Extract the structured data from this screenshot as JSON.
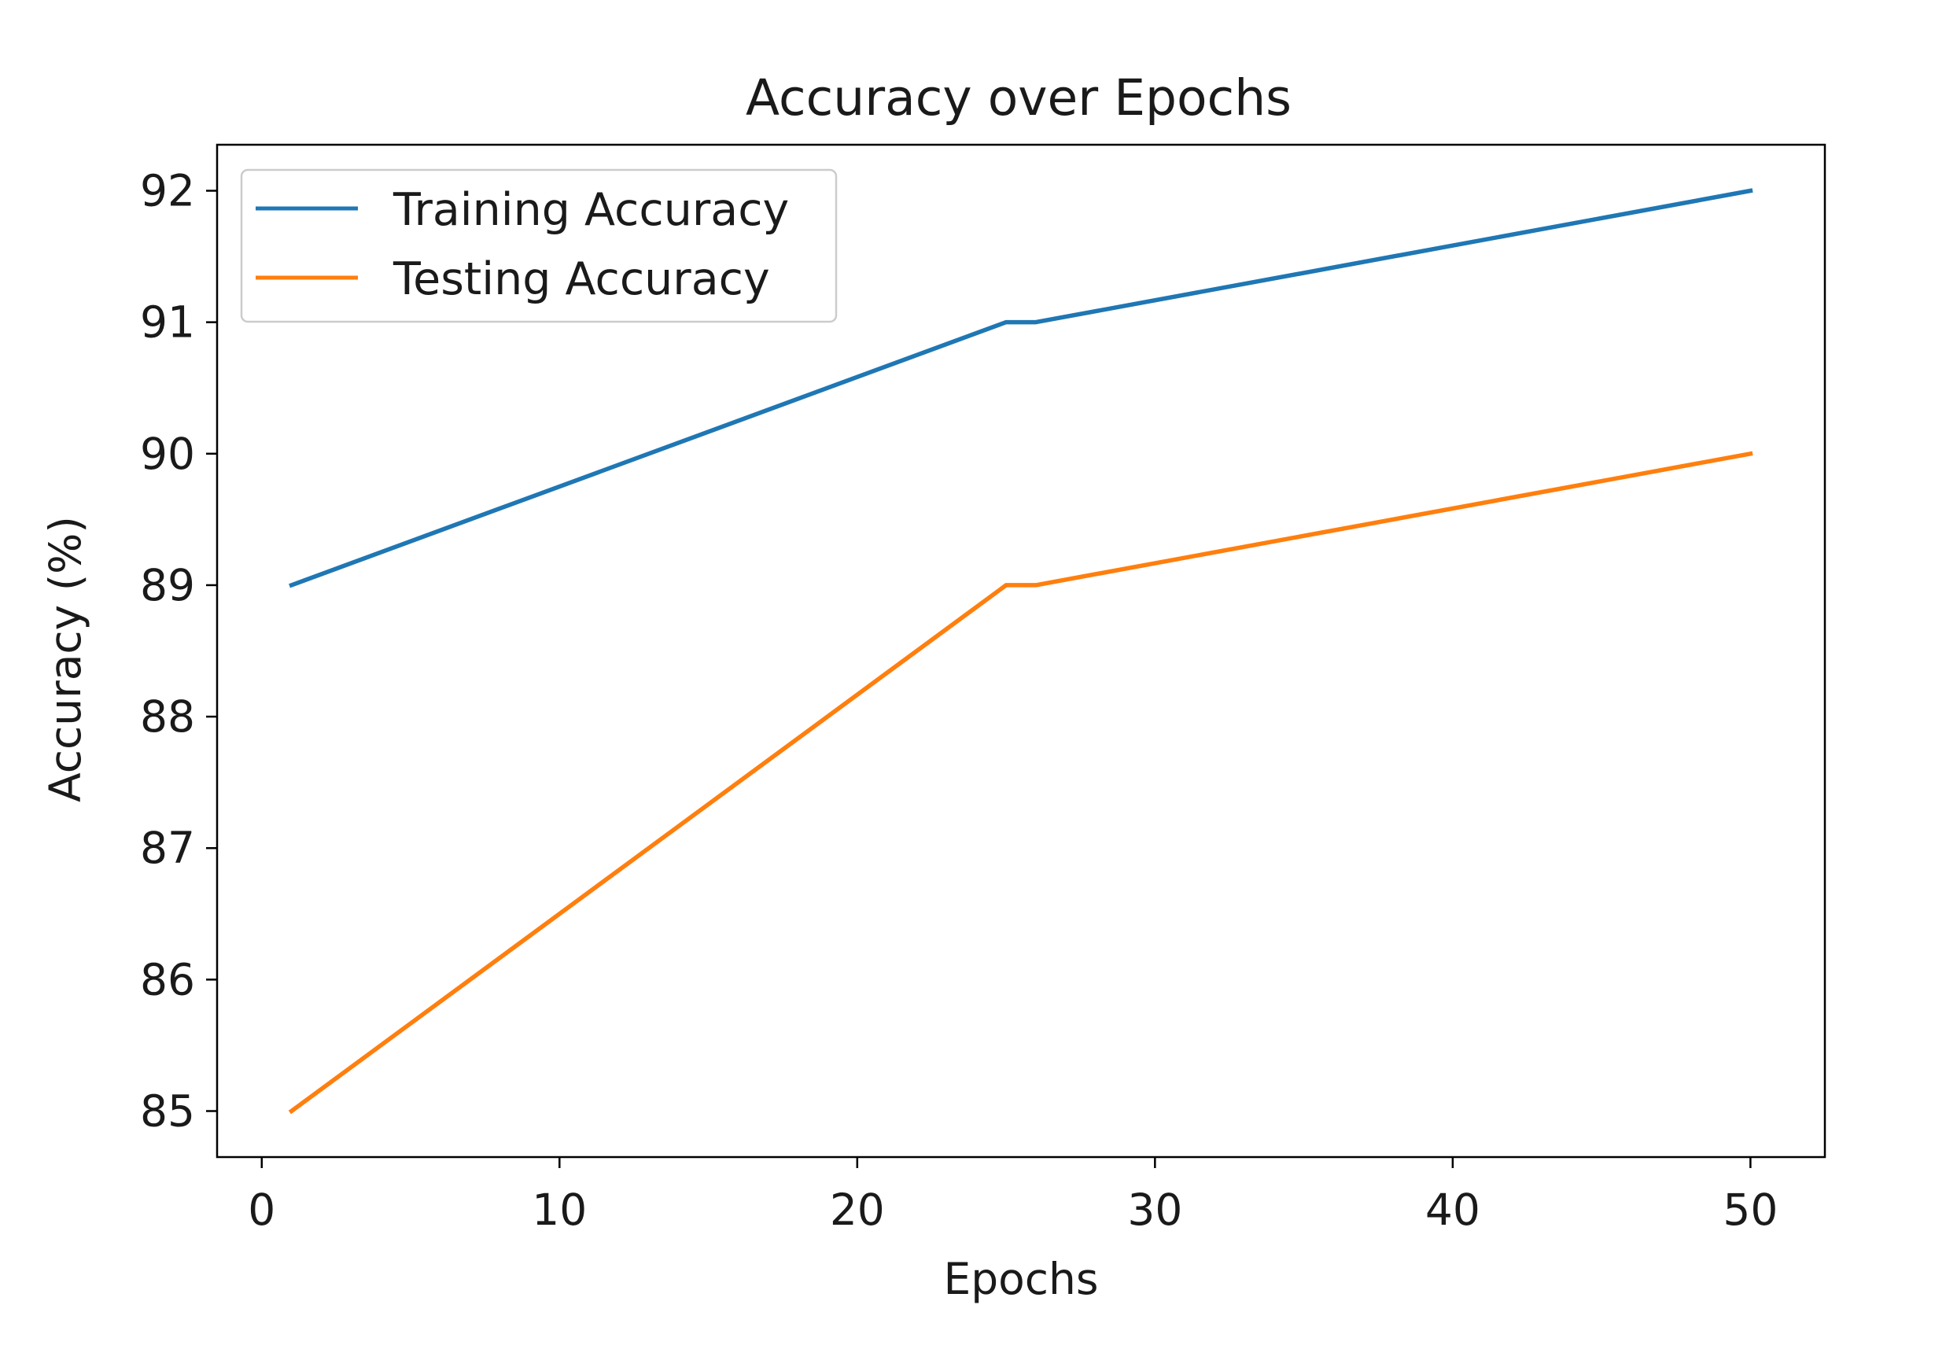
{
  "chart_data": {
    "type": "line",
    "title": "Accuracy over Epochs",
    "xlabel": "Epochs",
    "ylabel": "Accuracy (%)",
    "xlim": [
      -1.5,
      52.5
    ],
    "ylim": [
      84.65,
      92.35
    ],
    "xticks": [
      0,
      10,
      20,
      30,
      40,
      50
    ],
    "yticks": [
      85,
      86,
      87,
      88,
      89,
      90,
      91,
      92
    ],
    "grid": false,
    "legend_position": "upper-left",
    "series": [
      {
        "name": "Training Accuracy",
        "color": "#1f77b4",
        "x": [
          1,
          25,
          26,
          50
        ],
        "y": [
          89,
          91,
          91,
          92
        ]
      },
      {
        "name": "Testing Accuracy",
        "color": "#ff7f0e",
        "x": [
          1,
          25,
          26,
          50
        ],
        "y": [
          85,
          89,
          89,
          90
        ]
      }
    ]
  }
}
